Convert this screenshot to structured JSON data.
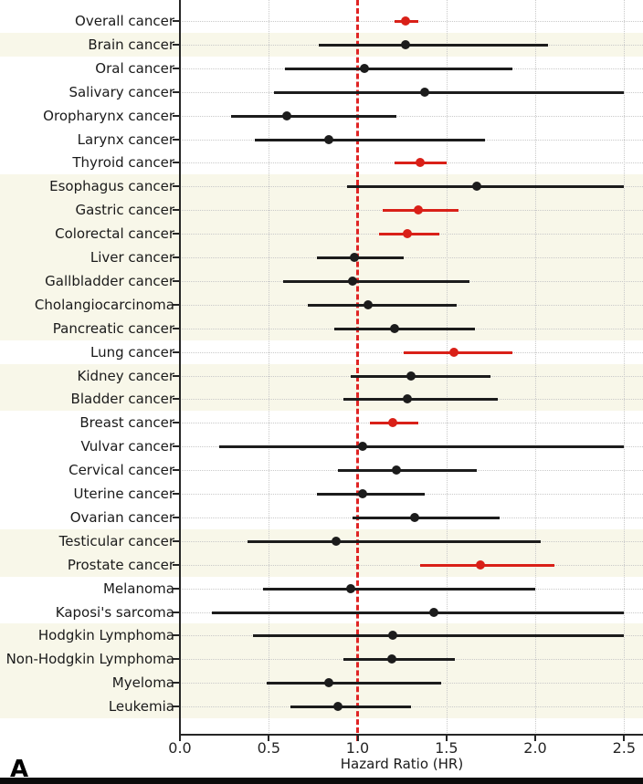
{
  "figure": {
    "panel_label": "A",
    "background_color": "#ffffff",
    "band_color": "#f8f7e9",
    "grid_color": "#c9c9c9",
    "axis_color": "#262626",
    "text_color": "#1a1a1a",
    "significant_color": "#d92018",
    "nonsignificant_color": "#1c1c1c",
    "reference_line_color": "#e02424"
  },
  "chart_data": {
    "type": "forest",
    "title": "",
    "xlabel": "Hazard Ratio (HR)",
    "ylabel": "",
    "xlim": [
      0,
      2.5
    ],
    "reference_line": 1.0,
    "grid": true,
    "x_ticks": [
      {
        "value": 0.0,
        "label": "0.0"
      },
      {
        "value": 0.5,
        "label": "0.5"
      },
      {
        "value": 1.0,
        "label": "1.0"
      },
      {
        "value": 1.5,
        "label": "1.5"
      },
      {
        "value": 2.0,
        "label": "2.0"
      },
      {
        "value": 2.5,
        "label": "2.5"
      }
    ],
    "rows": [
      {
        "label": "Overall cancer",
        "hr": 1.27,
        "ci_low": 1.21,
        "ci_high": 1.34,
        "significant": true,
        "band_shaded": false
      },
      {
        "label": "Brain cancer",
        "hr": 1.27,
        "ci_low": 0.78,
        "ci_high": 2.07,
        "significant": false,
        "band_shaded": true
      },
      {
        "label": "Oral cancer",
        "hr": 1.04,
        "ci_low": 0.59,
        "ci_high": 1.87,
        "significant": false,
        "band_shaded": false
      },
      {
        "label": "Salivary cancer",
        "hr": 1.38,
        "ci_low": 0.53,
        "ci_high": 2.5,
        "significant": false,
        "band_shaded": false
      },
      {
        "label": "Oropharynx cancer",
        "hr": 0.6,
        "ci_low": 0.29,
        "ci_high": 1.22,
        "significant": false,
        "band_shaded": false
      },
      {
        "label": "Larynx cancer",
        "hr": 0.84,
        "ci_low": 0.42,
        "ci_high": 1.72,
        "significant": false,
        "band_shaded": false
      },
      {
        "label": "Thyroid cancer",
        "hr": 1.35,
        "ci_low": 1.21,
        "ci_high": 1.5,
        "significant": true,
        "band_shaded": false
      },
      {
        "label": "Esophagus cancer",
        "hr": 1.67,
        "ci_low": 0.94,
        "ci_high": 2.5,
        "significant": false,
        "band_shaded": true
      },
      {
        "label": "Gastric cancer",
        "hr": 1.34,
        "ci_low": 1.14,
        "ci_high": 1.57,
        "significant": true,
        "band_shaded": true
      },
      {
        "label": "Colorectal cancer",
        "hr": 1.28,
        "ci_low": 1.12,
        "ci_high": 1.46,
        "significant": true,
        "band_shaded": true
      },
      {
        "label": "Liver cancer",
        "hr": 0.98,
        "ci_low": 0.77,
        "ci_high": 1.26,
        "significant": false,
        "band_shaded": true
      },
      {
        "label": "Gallbladder cancer",
        "hr": 0.97,
        "ci_low": 0.58,
        "ci_high": 1.63,
        "significant": false,
        "band_shaded": true
      },
      {
        "label": "Cholangiocarcinoma",
        "hr": 1.06,
        "ci_low": 0.72,
        "ci_high": 1.56,
        "significant": false,
        "band_shaded": true
      },
      {
        "label": "Pancreatic cancer",
        "hr": 1.21,
        "ci_low": 0.87,
        "ci_high": 1.66,
        "significant": false,
        "band_shaded": true
      },
      {
        "label": "Lung cancer",
        "hr": 1.54,
        "ci_low": 1.26,
        "ci_high": 1.87,
        "significant": true,
        "band_shaded": false
      },
      {
        "label": "Kidney cancer",
        "hr": 1.3,
        "ci_low": 0.96,
        "ci_high": 1.75,
        "significant": false,
        "band_shaded": true
      },
      {
        "label": "Bladder cancer",
        "hr": 1.28,
        "ci_low": 0.92,
        "ci_high": 1.79,
        "significant": false,
        "band_shaded": true
      },
      {
        "label": "Breast cancer",
        "hr": 1.2,
        "ci_low": 1.07,
        "ci_high": 1.34,
        "significant": true,
        "band_shaded": false
      },
      {
        "label": "Vulvar cancer",
        "hr": 1.03,
        "ci_low": 0.22,
        "ci_high": 2.5,
        "significant": false,
        "band_shaded": false
      },
      {
        "label": "Cervical cancer",
        "hr": 1.22,
        "ci_low": 0.89,
        "ci_high": 1.67,
        "significant": false,
        "band_shaded": false
      },
      {
        "label": "Uterine cancer",
        "hr": 1.03,
        "ci_low": 0.77,
        "ci_high": 1.38,
        "significant": false,
        "band_shaded": false
      },
      {
        "label": "Ovarian cancer",
        "hr": 1.32,
        "ci_low": 0.97,
        "ci_high": 1.8,
        "significant": false,
        "band_shaded": false
      },
      {
        "label": "Testicular cancer",
        "hr": 0.88,
        "ci_low": 0.38,
        "ci_high": 2.03,
        "significant": false,
        "band_shaded": true
      },
      {
        "label": "Prostate cancer",
        "hr": 1.69,
        "ci_low": 1.35,
        "ci_high": 2.11,
        "significant": true,
        "band_shaded": true
      },
      {
        "label": "Melanoma",
        "hr": 0.96,
        "ci_low": 0.47,
        "ci_high": 2.0,
        "significant": false,
        "band_shaded": false
      },
      {
        "label": "Kaposi's sarcoma",
        "hr": 1.43,
        "ci_low": 0.18,
        "ci_high": 2.5,
        "significant": false,
        "band_shaded": false
      },
      {
        "label": "Hodgkin Lymphoma",
        "hr": 1.2,
        "ci_low": 0.41,
        "ci_high": 2.5,
        "significant": false,
        "band_shaded": true
      },
      {
        "label": "Non-Hodgkin Lymphoma",
        "hr": 1.19,
        "ci_low": 0.92,
        "ci_high": 1.55,
        "significant": false,
        "band_shaded": true
      },
      {
        "label": "Myeloma",
        "hr": 0.84,
        "ci_low": 0.49,
        "ci_high": 1.47,
        "significant": false,
        "band_shaded": true
      },
      {
        "label": "Leukemia",
        "hr": 0.89,
        "ci_low": 0.62,
        "ci_high": 1.3,
        "significant": false,
        "band_shaded": true
      }
    ]
  }
}
